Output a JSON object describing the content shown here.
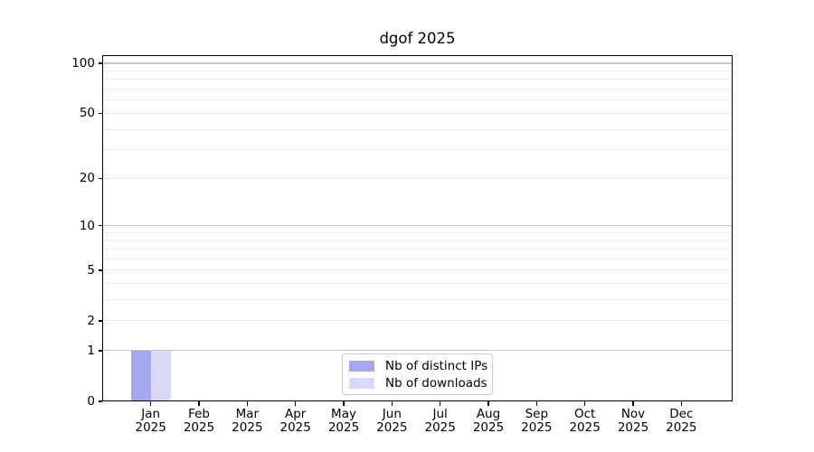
{
  "chart_data": {
    "type": "bar",
    "title": "dgof 2025",
    "categories": [
      "Jan 2025",
      "Feb 2025",
      "Mar 2025",
      "Apr 2025",
      "May 2025",
      "Jun 2025",
      "Jul 2025",
      "Aug 2025",
      "Sep 2025",
      "Oct 2025",
      "Nov 2025",
      "Dec 2025"
    ],
    "series": [
      {
        "name": "Nb of distinct IPs",
        "color": "#a6a6f1",
        "values": [
          1,
          0,
          0,
          0,
          0,
          0,
          0,
          0,
          0,
          0,
          0,
          0
        ]
      },
      {
        "name": "Nb of downloads",
        "color": "#d9d9f7",
        "values": [
          1,
          0,
          0,
          0,
          0,
          0,
          0,
          0,
          0,
          0,
          0,
          0
        ]
      }
    ],
    "xlabel": "",
    "ylabel": "",
    "y_scale": "log10(1+v)",
    "ylim": [
      0,
      112
    ],
    "y_ticks": [
      0,
      1,
      2,
      5,
      10,
      20,
      50,
      100
    ],
    "y_major_gridlines": [
      1,
      10,
      100
    ],
    "y_minor_gridlines": [
      2,
      3,
      4,
      5,
      6,
      7,
      8,
      9,
      20,
      30,
      40,
      50,
      60,
      70,
      80,
      90
    ],
    "grid": "horizontal",
    "legend_position": "lower center"
  },
  "colors": {
    "axis": "#000000",
    "grid_major": "#c6c6c6",
    "grid_minor": "#ebebeb",
    "legend_border": "#cccccc",
    "background": "#ffffff",
    "text": "#000000"
  }
}
